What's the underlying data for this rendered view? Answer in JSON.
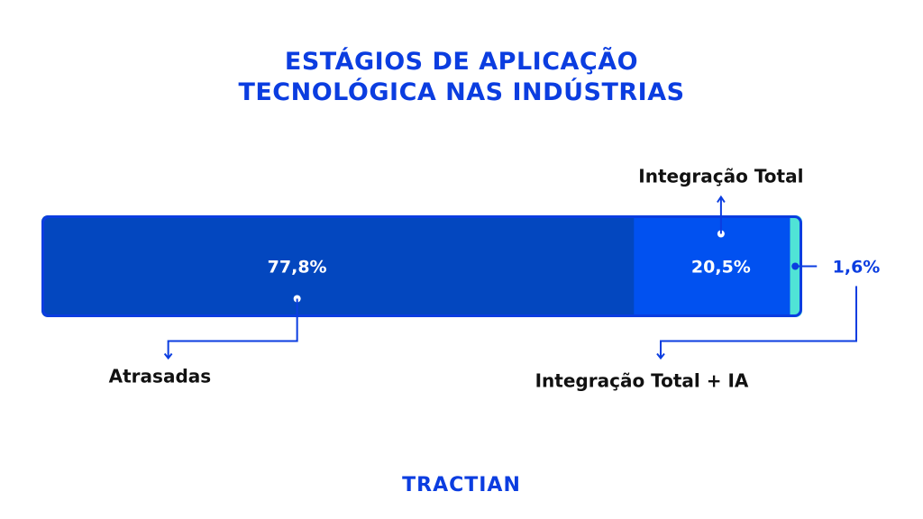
{
  "chart_data": {
    "type": "bar",
    "orientation": "horizontal-stacked",
    "title": [
      "ESTÁGIOS DE APLICAÇÃO",
      "TECNOLÓGICA NAS INDÚSTRIAS"
    ],
    "series": [
      {
        "name": "Atrasadas",
        "value": 77.8,
        "label": "77,8%",
        "color": "#0347bf"
      },
      {
        "name": "Integração Total",
        "value": 20.5,
        "label": "20,5%",
        "color": "#0151f0"
      },
      {
        "name": "Integração Total + IA",
        "value": 1.6,
        "label": "1,6%",
        "color": "#50e3d6"
      }
    ],
    "border_color": "#0b3de0",
    "label_color": "#0b3de0"
  },
  "brand": {
    "logo_text": "TRACTIAN"
  }
}
